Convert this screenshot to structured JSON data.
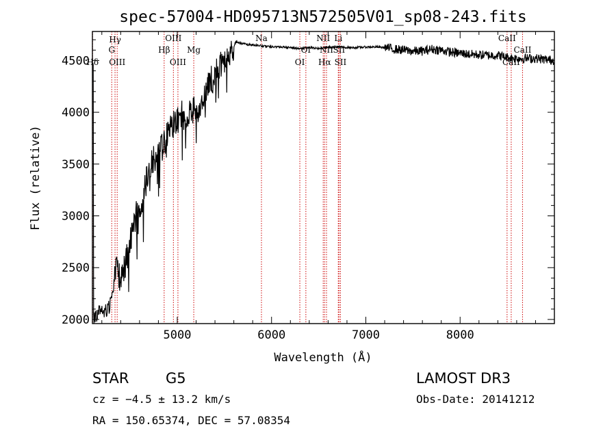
{
  "chart_data": {
    "type": "line",
    "title": "spec-57004-HD095713N572505V01_sp08-243.fits",
    "xlabel": "Wavelength (Å)",
    "ylabel": "Flux (relative)",
    "xlim": [
      4100,
      9000
    ],
    "ylim": [
      1960,
      4780
    ],
    "xticks": [
      5000,
      6000,
      7000,
      8000
    ],
    "yticks": [
      2000,
      2500,
      3000,
      3500,
      4000,
      4500
    ],
    "grid": false,
    "legend": "none",
    "series_color": "#000000",
    "line_color": "#cc0000",
    "anchors": [
      [
        4110,
        2000
      ],
      [
        4160,
        2060
      ],
      [
        4220,
        2080
      ],
      [
        4280,
        2120
      ],
      [
        4320,
        2300
      ],
      [
        4350,
        2550
      ],
      [
        4380,
        2400
      ],
      [
        4420,
        2450
      ],
      [
        4480,
        2650
      ],
      [
        4520,
        2850
      ],
      [
        4560,
        3000
      ],
      [
        4600,
        3100
      ],
      [
        4640,
        3200
      ],
      [
        4700,
        3450
      ],
      [
        4750,
        3560
      ],
      [
        4800,
        3600
      ],
      [
        4860,
        3700
      ],
      [
        4920,
        3850
      ],
      [
        4980,
        3900
      ],
      [
        5050,
        4000
      ],
      [
        5100,
        3920
      ],
      [
        5150,
        4030
      ],
      [
        5200,
        4000
      ],
      [
        5250,
        4080
      ],
      [
        5300,
        4180
      ],
      [
        5350,
        4300
      ],
      [
        5400,
        4350
      ],
      [
        5450,
        4440
      ],
      [
        5500,
        4480
      ],
      [
        5560,
        4520
      ],
      [
        5620,
        4680
      ],
      [
        5700,
        4660
      ],
      [
        5800,
        4650
      ],
      [
        5900,
        4640
      ],
      [
        6000,
        4630
      ],
      [
        6100,
        4630
      ],
      [
        6200,
        4625
      ],
      [
        6300,
        4615
      ],
      [
        6400,
        4625
      ],
      [
        6500,
        4615
      ],
      [
        6600,
        4630
      ],
      [
        6700,
        4630
      ],
      [
        6800,
        4625
      ],
      [
        6900,
        4625
      ],
      [
        7000,
        4630
      ],
      [
        7100,
        4630
      ],
      [
        7200,
        4625
      ],
      [
        7300,
        4610
      ],
      [
        7400,
        4600
      ],
      [
        7500,
        4590
      ],
      [
        7600,
        4590
      ],
      [
        7700,
        4610
      ],
      [
        7800,
        4600
      ],
      [
        7900,
        4580
      ],
      [
        8000,
        4570
      ],
      [
        8100,
        4560
      ],
      [
        8200,
        4555
      ],
      [
        8300,
        4550
      ],
      [
        8400,
        4550
      ],
      [
        8500,
        4530
      ],
      [
        8600,
        4520
      ],
      [
        8700,
        4520
      ],
      [
        8800,
        4520
      ],
      [
        8900,
        4510
      ],
      [
        9000,
        4500
      ]
    ],
    "lines": [
      {
        "name": "Hδ",
        "x": 4102,
        "row": 4
      },
      {
        "name": "Hγ",
        "x": 4340,
        "row": 1
      },
      {
        "name": "G",
        "x": 4305,
        "row": 2
      },
      {
        "name": "OIII",
        "x": 4363,
        "row": 3
      },
      {
        "name": "OIII",
        "x": 4959,
        "row": 0
      },
      {
        "name": "Hβ",
        "x": 4861,
        "row": 2
      },
      {
        "name": "OIII",
        "x": 5007,
        "row": 3
      },
      {
        "name": "Mg",
        "x": 5175,
        "row": 2
      },
      {
        "name": "Na",
        "x": 5893,
        "row": 0
      },
      {
        "name": "OI",
        "x": 6300,
        "row": 4
      },
      {
        "name": "OI",
        "x": 6364,
        "row": 2
      },
      {
        "name": "NII",
        "x": 6548,
        "row": 0
      },
      {
        "name": "NII",
        "x": 6583,
        "row": 2
      },
      {
        "name": "Hα",
        "x": 6563,
        "row": 4
      },
      {
        "name": "Li",
        "x": 6708,
        "row": 0
      },
      {
        "name": "SII",
        "x": 6716,
        "row": 2
      },
      {
        "name": "SII",
        "x": 6731,
        "row": 4
      },
      {
        "name": "CaII",
        "x": 8498,
        "row": 0
      },
      {
        "name": "CaII",
        "x": 8542,
        "row": 4
      },
      {
        "name": "CaII",
        "x": 8662,
        "row": 2
      }
    ]
  },
  "info": {
    "object_class": "STAR",
    "subclass": "G5",
    "survey": "LAMOST DR3",
    "cz": "cz = −4.5 ± 13.2 km/s",
    "obs_date": "Obs-Date: 20141212",
    "radec": "RA = 150.65374, DEC =  57.08354"
  }
}
